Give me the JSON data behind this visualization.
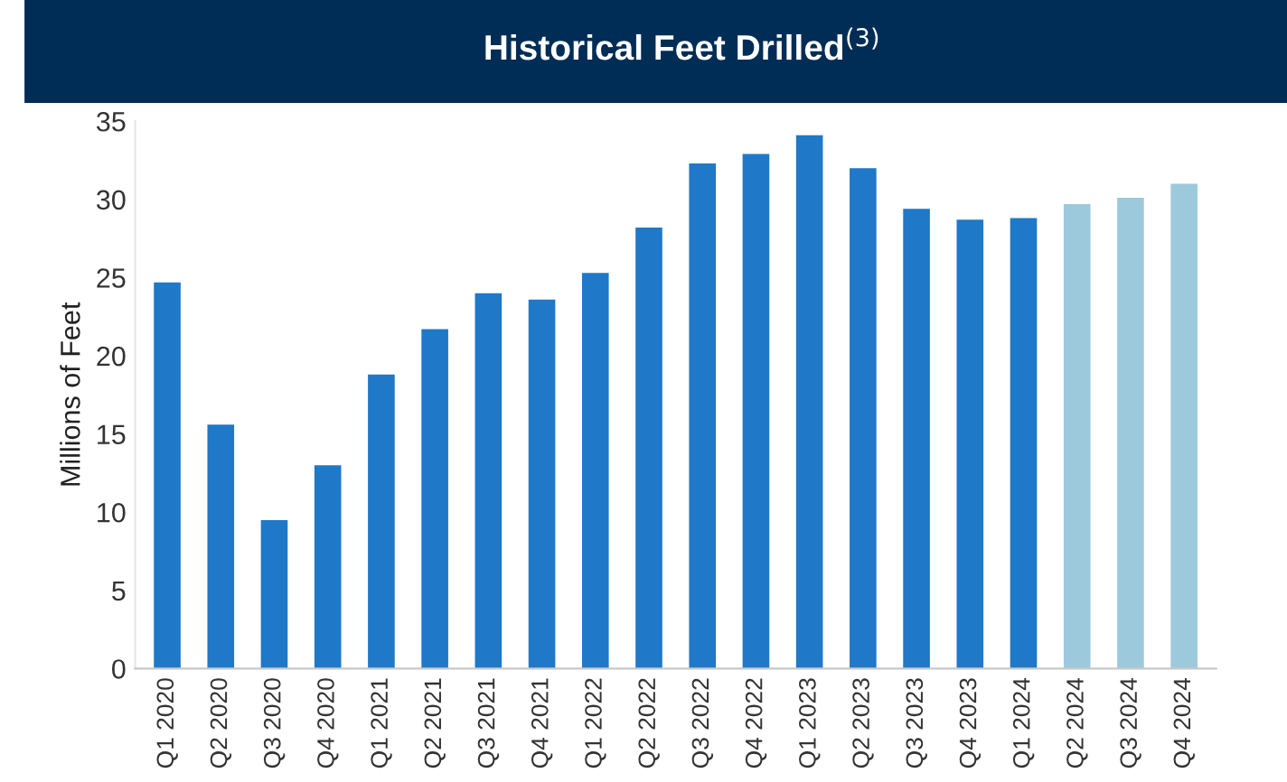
{
  "chart_data": {
    "type": "bar",
    "title": "Historical Feet Drilled$^{(3)}$",
    "ylabel": "Millions of Feet",
    "categories": [
      "Q1 2020",
      "Q2 2020",
      "Q3 2020",
      "Q4 2020",
      "Q1 2021",
      "Q2 2021",
      "Q3 2021",
      "Q4 2021",
      "Q1 2022",
      "Q2 2022",
      "Q3 2022",
      "Q4 2022",
      "Q1 2023",
      "Q2 2023",
      "Q3 2023",
      "Q4 2023",
      "Q1 2024",
      "Q2 2024",
      "Q3 2024",
      "Q4 2024"
    ],
    "values": [
      24.7,
      15.6,
      9.5,
      13.0,
      18.8,
      21.7,
      24.0,
      23.6,
      25.3,
      28.2,
      32.3,
      32.9,
      34.1,
      32.0,
      29.4,
      28.7,
      28.8,
      29.7,
      30.1,
      31.0
    ],
    "colors": [
      "#1f78c8",
      "#1f78c8",
      "#1f78c8",
      "#1f78c8",
      "#1f78c8",
      "#1f78c8",
      "#1f78c8",
      "#1f78c8",
      "#1f78c8",
      "#1f78c8",
      "#1f78c8",
      "#1f78c8",
      "#1f78c8",
      "#1f78c8",
      "#1f78c8",
      "#1f78c8",
      "#1f78c8",
      "#9dc9dc",
      "#9dc9dc",
      "#9dc9dc"
    ],
    "ylim": [
      0,
      35
    ],
    "yticks": [
      0,
      5,
      10,
      15,
      20,
      25,
      30,
      35
    ],
    "grid": false
  }
}
